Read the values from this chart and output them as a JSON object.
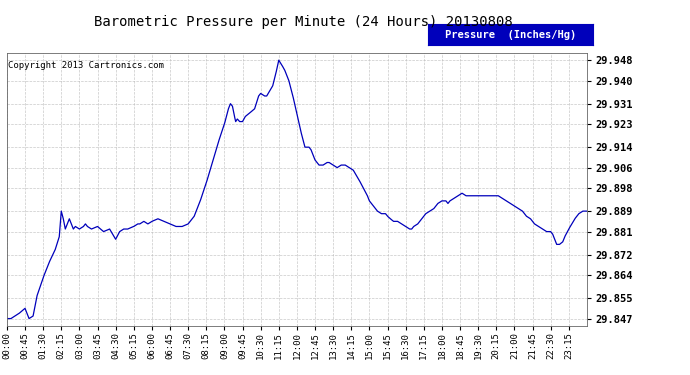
{
  "title": "Barometric Pressure per Minute (24 Hours) 20130808",
  "copyright": "Copyright 2013 Cartronics.com",
  "legend_label": "Pressure  (Inches/Hg)",
  "line_color": "#0000bb",
  "background_color": "#ffffff",
  "plot_bg_color": "#ffffff",
  "grid_color": "#bbbbbb",
  "yticks": [
    29.847,
    29.855,
    29.864,
    29.872,
    29.881,
    29.889,
    29.898,
    29.906,
    29.914,
    29.923,
    29.931,
    29.94,
    29.948
  ],
  "ylim": [
    29.844,
    29.951
  ],
  "xtick_labels": [
    "00:00",
    "00:45",
    "01:30",
    "02:15",
    "03:00",
    "03:45",
    "04:30",
    "05:15",
    "06:00",
    "06:45",
    "07:30",
    "08:15",
    "09:00",
    "09:45",
    "10:30",
    "11:15",
    "12:00",
    "12:45",
    "13:30",
    "14:15",
    "15:00",
    "15:45",
    "16:30",
    "17:15",
    "18:00",
    "18:45",
    "19:30",
    "20:15",
    "21:00",
    "21:45",
    "22:30",
    "23:15"
  ],
  "control_points": [
    [
      0,
      29.847
    ],
    [
      10,
      29.847
    ],
    [
      30,
      29.849
    ],
    [
      45,
      29.851
    ],
    [
      55,
      29.847
    ],
    [
      65,
      29.848
    ],
    [
      75,
      29.856
    ],
    [
      90,
      29.863
    ],
    [
      105,
      29.869
    ],
    [
      120,
      29.874
    ],
    [
      130,
      29.879
    ],
    [
      135,
      29.889
    ],
    [
      140,
      29.886
    ],
    [
      145,
      29.882
    ],
    [
      150,
      29.884
    ],
    [
      155,
      29.886
    ],
    [
      160,
      29.884
    ],
    [
      165,
      29.882
    ],
    [
      170,
      29.883
    ],
    [
      180,
      29.882
    ],
    [
      190,
      29.883
    ],
    [
      195,
      29.884
    ],
    [
      200,
      29.883
    ],
    [
      210,
      29.882
    ],
    [
      225,
      29.883
    ],
    [
      240,
      29.881
    ],
    [
      255,
      29.882
    ],
    [
      270,
      29.878
    ],
    [
      280,
      29.881
    ],
    [
      290,
      29.882
    ],
    [
      300,
      29.882
    ],
    [
      315,
      29.883
    ],
    [
      325,
      29.884
    ],
    [
      330,
      29.884
    ],
    [
      340,
      29.885
    ],
    [
      350,
      29.884
    ],
    [
      360,
      29.885
    ],
    [
      375,
      29.886
    ],
    [
      390,
      29.885
    ],
    [
      405,
      29.884
    ],
    [
      420,
      29.883
    ],
    [
      435,
      29.883
    ],
    [
      450,
      29.884
    ],
    [
      465,
      29.887
    ],
    [
      480,
      29.893
    ],
    [
      495,
      29.9
    ],
    [
      510,
      29.908
    ],
    [
      525,
      29.916
    ],
    [
      540,
      29.923
    ],
    [
      550,
      29.929
    ],
    [
      555,
      29.931
    ],
    [
      560,
      29.93
    ],
    [
      565,
      29.926
    ],
    [
      568,
      29.924
    ],
    [
      572,
      29.925
    ],
    [
      578,
      29.924
    ],
    [
      585,
      29.924
    ],
    [
      592,
      29.926
    ],
    [
      600,
      29.927
    ],
    [
      615,
      29.929
    ],
    [
      625,
      29.934
    ],
    [
      630,
      29.935
    ],
    [
      640,
      29.934
    ],
    [
      645,
      29.934
    ],
    [
      660,
      29.938
    ],
    [
      668,
      29.943
    ],
    [
      675,
      29.948
    ],
    [
      683,
      29.946
    ],
    [
      690,
      29.944
    ],
    [
      700,
      29.94
    ],
    [
      710,
      29.934
    ],
    [
      720,
      29.927
    ],
    [
      730,
      29.92
    ],
    [
      740,
      29.914
    ],
    [
      750,
      29.914
    ],
    [
      755,
      29.913
    ],
    [
      760,
      29.911
    ],
    [
      765,
      29.909
    ],
    [
      770,
      29.908
    ],
    [
      775,
      29.907
    ],
    [
      785,
      29.907
    ],
    [
      795,
      29.908
    ],
    [
      800,
      29.908
    ],
    [
      810,
      29.907
    ],
    [
      820,
      29.906
    ],
    [
      830,
      29.907
    ],
    [
      840,
      29.907
    ],
    [
      850,
      29.906
    ],
    [
      860,
      29.905
    ],
    [
      875,
      29.901
    ],
    [
      885,
      29.898
    ],
    [
      895,
      29.895
    ],
    [
      900,
      29.893
    ],
    [
      910,
      29.891
    ],
    [
      920,
      29.889
    ],
    [
      930,
      29.888
    ],
    [
      940,
      29.888
    ],
    [
      945,
      29.887
    ],
    [
      952,
      29.886
    ],
    [
      960,
      29.885
    ],
    [
      970,
      29.885
    ],
    [
      980,
      29.884
    ],
    [
      990,
      29.883
    ],
    [
      1000,
      29.882
    ],
    [
      1005,
      29.882
    ],
    [
      1010,
      29.883
    ],
    [
      1020,
      29.884
    ],
    [
      1030,
      29.886
    ],
    [
      1040,
      29.888
    ],
    [
      1050,
      29.889
    ],
    [
      1060,
      29.89
    ],
    [
      1070,
      29.892
    ],
    [
      1080,
      29.893
    ],
    [
      1090,
      29.893
    ],
    [
      1095,
      29.892
    ],
    [
      1100,
      29.893
    ],
    [
      1110,
      29.894
    ],
    [
      1120,
      29.895
    ],
    [
      1130,
      29.896
    ],
    [
      1140,
      29.895
    ],
    [
      1150,
      29.895
    ],
    [
      1160,
      29.895
    ],
    [
      1170,
      29.895
    ],
    [
      1180,
      29.895
    ],
    [
      1185,
      29.895
    ],
    [
      1190,
      29.895
    ],
    [
      1195,
      29.895
    ],
    [
      1200,
      29.895
    ],
    [
      1210,
      29.895
    ],
    [
      1220,
      29.895
    ],
    [
      1230,
      29.894
    ],
    [
      1240,
      29.893
    ],
    [
      1250,
      29.892
    ],
    [
      1260,
      29.891
    ],
    [
      1270,
      29.89
    ],
    [
      1280,
      29.889
    ],
    [
      1290,
      29.887
    ],
    [
      1300,
      29.886
    ],
    [
      1310,
      29.884
    ],
    [
      1320,
      29.883
    ],
    [
      1330,
      29.882
    ],
    [
      1340,
      29.881
    ],
    [
      1350,
      29.881
    ],
    [
      1355,
      29.88
    ],
    [
      1360,
      29.878
    ],
    [
      1365,
      29.876
    ],
    [
      1372,
      29.876
    ],
    [
      1380,
      29.877
    ],
    [
      1385,
      29.879
    ],
    [
      1395,
      29.882
    ],
    [
      1410,
      29.886
    ],
    [
      1420,
      29.888
    ],
    [
      1430,
      29.889
    ],
    [
      1439,
      29.889
    ]
  ]
}
